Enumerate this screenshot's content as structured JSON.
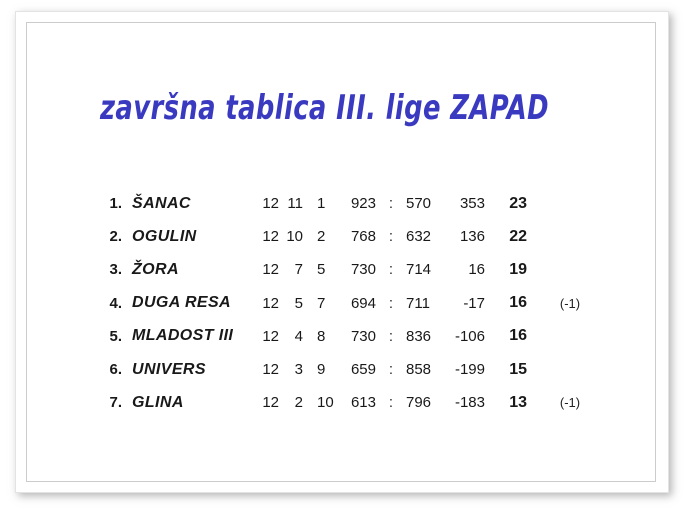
{
  "title": "završna tablica III. lige ZAPAD",
  "table": {
    "score_separator": ":",
    "rows": [
      {
        "rank": "1.",
        "team": "ŠANAC",
        "played": "12",
        "wins": "11",
        "losses": "1",
        "score_for": "923",
        "score_against": "570",
        "diff": "353",
        "points": "23",
        "penalty": ""
      },
      {
        "rank": "2.",
        "team": "OGULIN",
        "played": "12",
        "wins": "10",
        "losses": "2",
        "score_for": "768",
        "score_against": "632",
        "diff": "136",
        "points": "22",
        "penalty": ""
      },
      {
        "rank": "3.",
        "team": "ŽORA",
        "played": "12",
        "wins": "7",
        "losses": "5",
        "score_for": "730",
        "score_against": "714",
        "diff": "16",
        "points": "19",
        "penalty": ""
      },
      {
        "rank": "4.",
        "team": "DUGA RESA",
        "played": "12",
        "wins": "5",
        "losses": "7",
        "score_for": "694",
        "score_against": "711",
        "diff": "-17",
        "points": "16",
        "penalty": "(-1)"
      },
      {
        "rank": "5.",
        "team": "MLADOST III",
        "played": "12",
        "wins": "4",
        "losses": "8",
        "score_for": "730",
        "score_against": "836",
        "diff": "-106",
        "points": "16",
        "penalty": ""
      },
      {
        "rank": "6.",
        "team": "UNIVERS",
        "played": "12",
        "wins": "3",
        "losses": "9",
        "score_for": "659",
        "score_against": "858",
        "diff": "-199",
        "points": "15",
        "penalty": ""
      },
      {
        "rank": "7.",
        "team": "GLINA",
        "played": "12",
        "wins": "2",
        "losses": "10",
        "score_for": "613",
        "score_against": "796",
        "diff": "-183",
        "points": "13",
        "penalty": "(-1)"
      }
    ]
  },
  "colors": {
    "title": "#3a3ac0",
    "text": "#191919",
    "frame_border": "#e3e3e3",
    "inner_border": "#cccccc"
  }
}
